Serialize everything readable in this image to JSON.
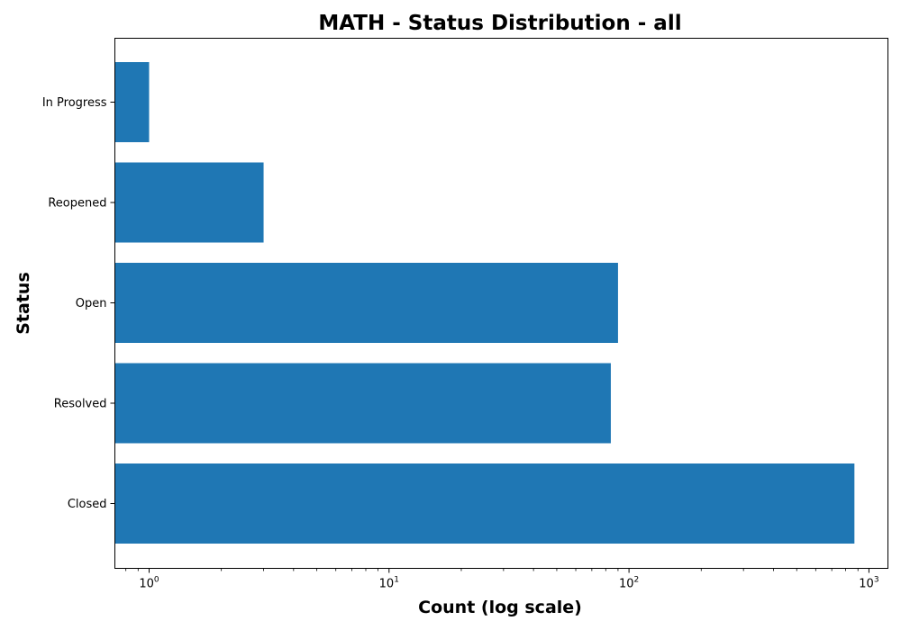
{
  "chart_data": {
    "type": "bar",
    "orientation": "horizontal",
    "title": "MATH - Status Distribution - all",
    "xlabel": "Count (log scale)",
    "ylabel": "Status",
    "x_scale": "log",
    "xlim": [
      0.72,
      1200
    ],
    "grid": false,
    "legend": "none",
    "categories": [
      "Closed",
      "Resolved",
      "Open",
      "Reopened",
      "In Progress"
    ],
    "values": [
      870,
      84,
      90,
      3,
      1
    ],
    "x_ticks": [
      {
        "base": "10",
        "exp": "0",
        "value": 1
      },
      {
        "base": "10",
        "exp": "1",
        "value": 10
      },
      {
        "base": "10",
        "exp": "2",
        "value": 100
      },
      {
        "base": "10",
        "exp": "3",
        "value": 1000
      }
    ],
    "bar_color": "#1f77b4"
  }
}
